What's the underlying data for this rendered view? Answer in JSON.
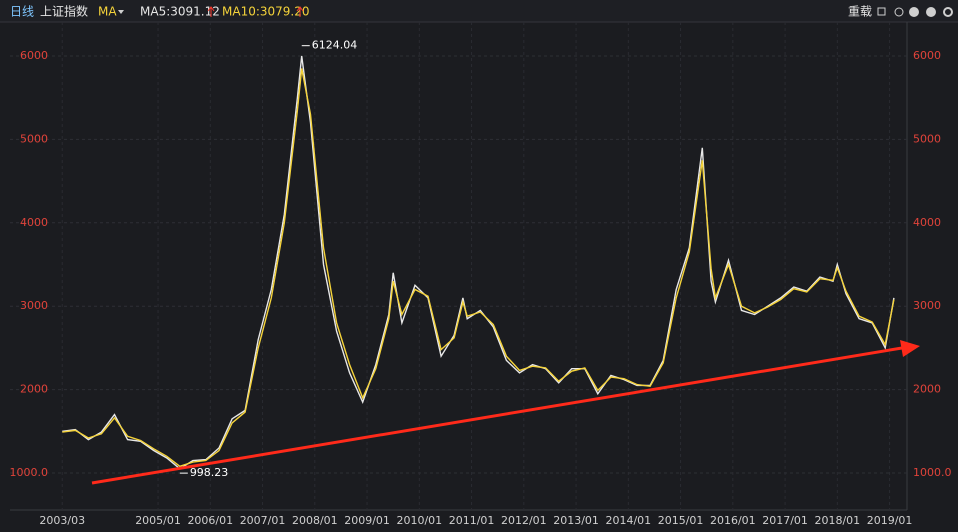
{
  "header": {
    "period": "日线",
    "index": "上证指数",
    "indicator": "MA",
    "ma5": "MA5:3091.12",
    "ma10": "MA10:3079.20",
    "reload": "重载"
  },
  "chart_data": {
    "type": "line",
    "x": [
      "2003/03",
      "2003/06",
      "2003/09",
      "2003/12",
      "2004/03",
      "2004/06",
      "2004/09",
      "2004/12",
      "2005/03",
      "2005/06",
      "2005/09",
      "2005/12",
      "2006/03",
      "2006/06",
      "2006/09",
      "2006/12",
      "2007/03",
      "2007/06",
      "2007/09",
      "2007/10",
      "2007/12",
      "2008/03",
      "2008/06",
      "2008/09",
      "2008/12",
      "2009/03",
      "2009/06",
      "2009/07",
      "2009/09",
      "2009/12",
      "2010/03",
      "2010/06",
      "2010/09",
      "2010/11",
      "2010/12",
      "2011/03",
      "2011/06",
      "2011/09",
      "2011/12",
      "2012/03",
      "2012/06",
      "2012/09",
      "2012/12",
      "2013/03",
      "2013/06",
      "2013/09",
      "2013/12",
      "2014/03",
      "2014/06",
      "2014/09",
      "2014/12",
      "2015/03",
      "2015/06",
      "2015/08",
      "2015/09",
      "2015/12",
      "2016/03",
      "2016/06",
      "2016/09",
      "2016/12",
      "2017/03",
      "2017/06",
      "2017/09",
      "2017/12",
      "2018/01",
      "2018/03",
      "2018/06",
      "2018/09",
      "2018/12",
      "2019/02"
    ],
    "series": [
      {
        "color": "#e8e8e8",
        "values": [
          1500,
          1520,
          1400,
          1490,
          1700,
          1400,
          1380,
          1270,
          1180,
          1050,
          1150,
          1160,
          1300,
          1650,
          1750,
          2600,
          3200,
          4100,
          5500,
          6000,
          5200,
          3500,
          2700,
          2200,
          1850,
          2300,
          2900,
          3400,
          2800,
          3250,
          3100,
          2400,
          2650,
          3100,
          2850,
          2950,
          2750,
          2350,
          2200,
          2300,
          2250,
          2080,
          2250,
          2250,
          1950,
          2170,
          2120,
          2050,
          2050,
          2350,
          3200,
          3700,
          4900,
          3300,
          3050,
          3550,
          2950,
          2900,
          3000,
          3100,
          3230,
          3180,
          3350,
          3300,
          3500,
          3150,
          2850,
          2800,
          2500,
          3100
        ]
      },
      {
        "color": "#f5d33a",
        "values": [
          1490,
          1510,
          1420,
          1470,
          1660,
          1440,
          1390,
          1290,
          1200,
          1080,
          1130,
          1150,
          1270,
          1600,
          1730,
          2500,
          3100,
          4000,
          5350,
          5850,
          5300,
          3700,
          2800,
          2300,
          1900,
          2250,
          2850,
          3300,
          2900,
          3200,
          3120,
          2480,
          2620,
          3050,
          2880,
          2930,
          2780,
          2400,
          2230,
          2280,
          2260,
          2100,
          2220,
          2260,
          1990,
          2150,
          2130,
          2060,
          2040,
          2320,
          3100,
          3650,
          4750,
          3450,
          3100,
          3500,
          3000,
          2920,
          2990,
          3080,
          3210,
          3170,
          3330,
          3310,
          3460,
          3180,
          2880,
          2810,
          2540,
          3079.2
        ]
      }
    ],
    "xlim": [
      "2002/03",
      "2019/05"
    ],
    "xticks": [
      "2003/03",
      "2005/01",
      "2006/01",
      "2007/01",
      "2008/01",
      "2009/01",
      "2010/01",
      "2011/01",
      "2012/01",
      "2013/01",
      "2014/01",
      "2015/01",
      "2016/01",
      "2017/01",
      "2018/01",
      "2019/01"
    ],
    "ylim": [
      556,
      6408
    ],
    "yticks": [
      {
        "value": 1000,
        "label": "1000.0"
      },
      2000,
      3000,
      4000,
      5000,
      6000
    ],
    "annotations": [
      {
        "x": "2007/10",
        "value": 6124.04
      },
      {
        "x": "2005/06",
        "value": 998.23
      }
    ],
    "grid": true
  }
}
